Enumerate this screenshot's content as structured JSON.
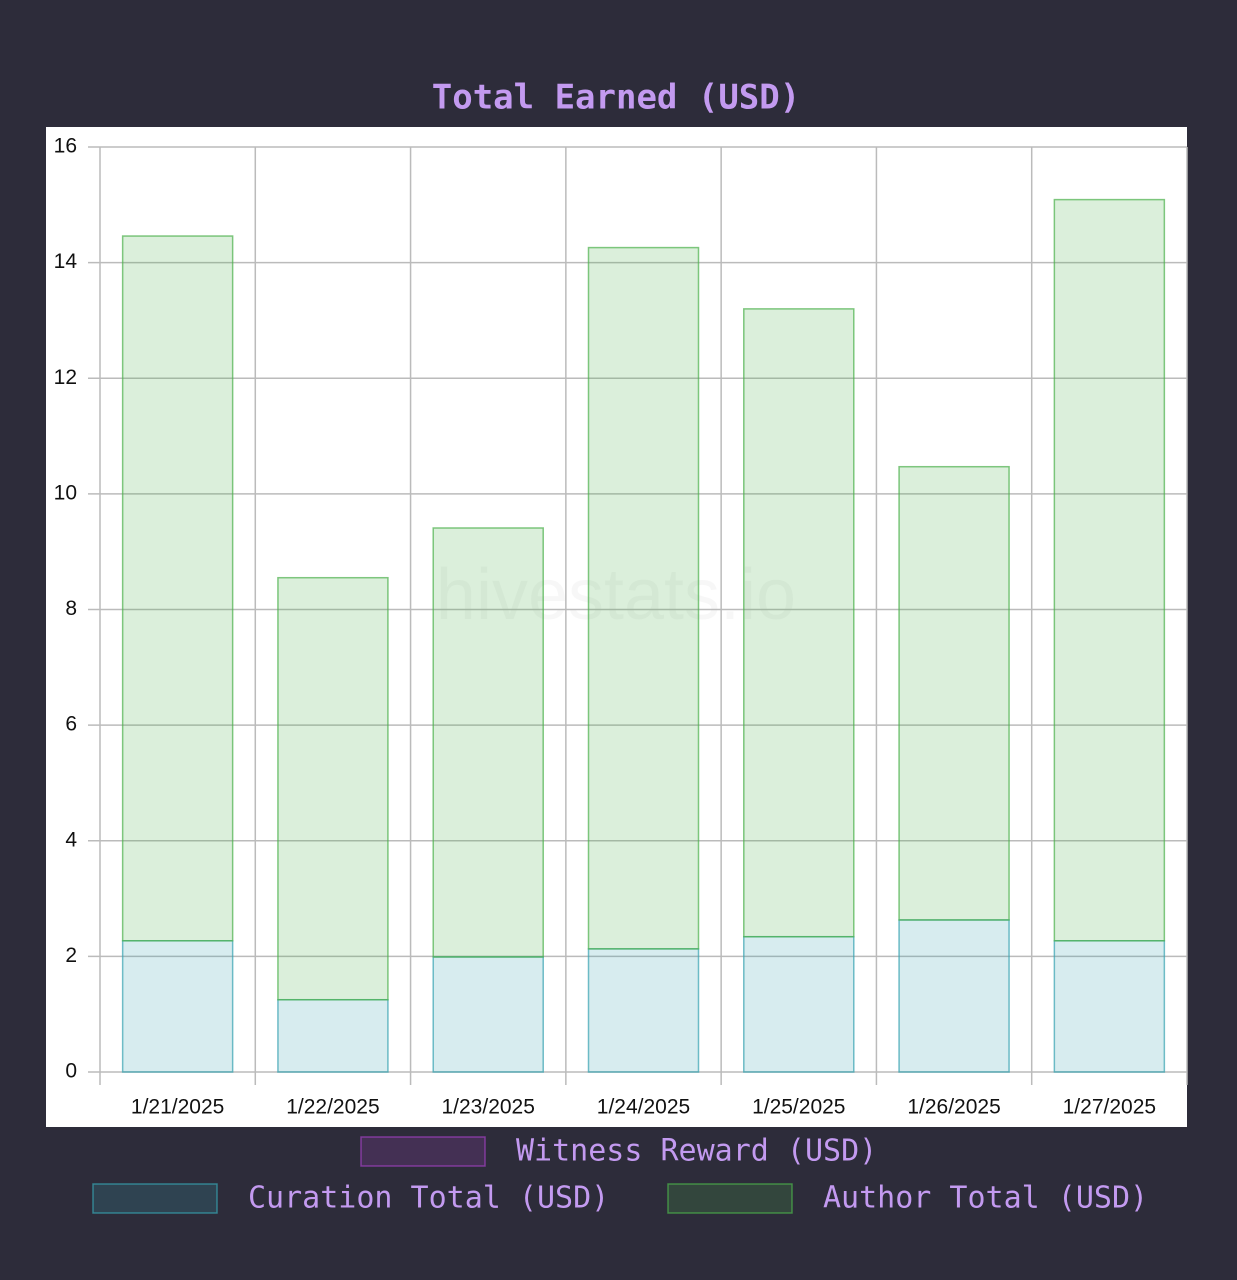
{
  "chart_data": {
    "type": "bar",
    "stacked": true,
    "title": "Total Earned (USD)",
    "watermark": "hivestats.io",
    "categories": [
      "1/21/2025",
      "1/22/2025",
      "1/23/2025",
      "1/24/2025",
      "1/25/2025",
      "1/26/2025",
      "1/27/2025"
    ],
    "series": [
      {
        "name": "Witness Reward (USD)",
        "color": "#a040c0",
        "values": [
          0,
          0,
          0,
          0,
          0,
          0,
          0
        ]
      },
      {
        "name": "Curation Total (USD)",
        "color": "#36a2b0",
        "values": [
          2.27,
          1.25,
          1.99,
          2.13,
          2.34,
          2.63,
          2.27
        ]
      },
      {
        "name": "Author Total (USD)",
        "color": "#4bb04b",
        "values": [
          12.19,
          7.3,
          7.42,
          12.13,
          10.86,
          7.84,
          12.82
        ]
      }
    ],
    "ylim": [
      0,
      16
    ],
    "yticks": [
      0,
      2,
      4,
      6,
      8,
      10,
      12,
      14,
      16
    ],
    "grid": true,
    "legend": "bottom"
  }
}
